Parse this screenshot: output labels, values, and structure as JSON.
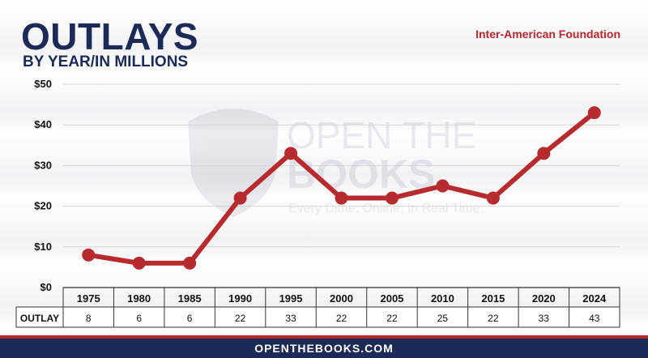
{
  "header": {
    "title": "OUTLAYS",
    "subtitle": "BY YEAR/IN MILLIONS",
    "agency": "Inter-American Foundation"
  },
  "watermark": {
    "line1": "OPEN THE",
    "line2": "BOOKS",
    "tagline": "Every Dime. Online. In Real Time."
  },
  "footer": {
    "text": "OPENTHEBOOKS.COM"
  },
  "colors": {
    "navy": "#1b2a57",
    "red": "#b5272d",
    "line": "#b72a2e"
  },
  "chart_data": {
    "type": "line",
    "x": [
      "1975",
      "1980",
      "1985",
      "1990",
      "1995",
      "2000",
      "2005",
      "2010",
      "2015",
      "2020",
      "2024"
    ],
    "series": [
      {
        "name": "OUTLAY",
        "values": [
          8,
          6,
          6,
          22,
          33,
          22,
          22,
          25,
          22,
          33,
          43
        ]
      }
    ],
    "y_ticks": [
      "$0",
      "$10",
      "$20",
      "$30",
      "$40",
      "$50"
    ],
    "ylim": [
      0,
      50
    ],
    "grid": true,
    "table_row_label": "OUTLAY",
    "value_labels": [
      "8",
      "6",
      "6",
      "22",
      "33",
      "22",
      "22",
      "25",
      "22",
      "33",
      "43"
    ]
  }
}
